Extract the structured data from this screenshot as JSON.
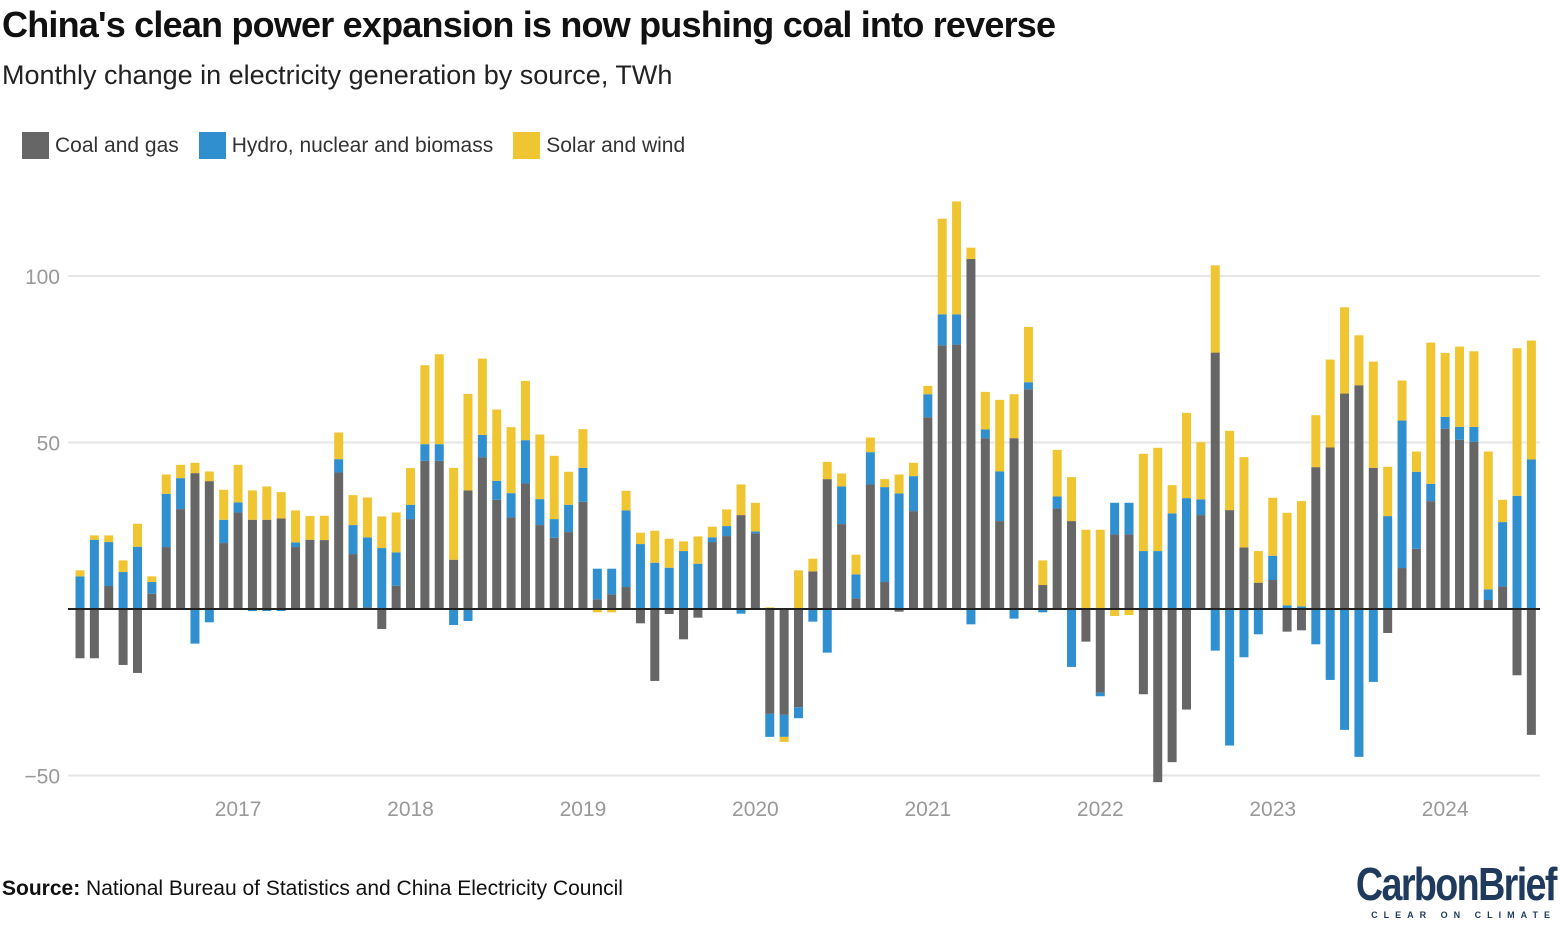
{
  "header": {
    "title": "China's clean power expansion is now pushing coal into reverse",
    "subtitle": "Monthly change in electricity generation by source, TWh"
  },
  "footer": {
    "source_label": "Source:",
    "source_text": "National Bureau of Statistics and China Electricity Council",
    "logo_text": "CarbonBrief",
    "logo_tagline": "CLEAR ON CLIMATE"
  },
  "colors": {
    "coal": "#666666",
    "hydro": "#2f8fcf",
    "solar": "#efc531",
    "grid": "#e6e6e6",
    "zero": "#222222"
  },
  "chart_data": {
    "type": "bar",
    "stacked": true,
    "title": "China's clean power expansion is now pushing coal into reverse",
    "subtitle": "Monthly change in electricity generation by source, TWh",
    "xlabel": "",
    "ylabel": "",
    "ylim": [
      -55,
      125
    ],
    "yticks": [
      100,
      50,
      0,
      -50
    ],
    "ytick_labels": [
      "100",
      "50",
      "",
      "−50"
    ],
    "xtick_labels": [
      "2017",
      "2018",
      "2019",
      "2020",
      "2021",
      "2022",
      "2023",
      "2024"
    ],
    "grid": true,
    "legend_position": "top-left",
    "x_start": "2016-02",
    "x_end": "2024-07",
    "series": [
      {
        "name": "Coal and gas",
        "color": "#666666",
        "values": [
          -14.8,
          -14.8,
          6.9,
          -16.8,
          -19.2,
          4.6,
          18.6,
          30,
          40.8,
          38.4,
          19.8,
          29,
          26.8,
          26.8,
          27.2,
          18.6,
          20.8,
          20.7,
          41,
          16.5,
          0.5,
          -6,
          7,
          27,
          44.5,
          44.5,
          14.8,
          35.6,
          45.6,
          32.8,
          27.5,
          37.7,
          25.2,
          21.4,
          23.1,
          32.2,
          2.9,
          4.4,
          6.6,
          -4.3,
          -21.6,
          -1.5,
          -9.1,
          -2.6,
          20.1,
          21.9,
          28.2,
          22.7,
          -31.5,
          -31.8,
          -29.5,
          11.3,
          39,
          25.5,
          3.2,
          37.4,
          8.1,
          -0.8,
          29.4,
          57.6,
          79.2,
          79.4,
          105.1,
          51.3,
          26.4,
          51.3,
          66,
          7.2,
          30.2,
          26.4,
          -9.8,
          -25.1,
          22.4,
          22.4,
          -25.6,
          -52,
          -46,
          -30.2,
          28.2,
          77,
          29.7,
          18.5,
          7.9,
          8.7,
          -6.8,
          -6.4,
          42.6,
          48.5,
          64.7,
          67.2,
          42.4,
          -7.2,
          12.3,
          18.1,
          32.4,
          54.1,
          50.8,
          50.2,
          2.7,
          6.8,
          -19.9,
          -37.8
        ]
      },
      {
        "name": "Hydro, nuclear and biomass",
        "color": "#2f8fcf",
        "values": [
          9.8,
          20.8,
          13.2,
          11.1,
          18.7,
          3.5,
          16,
          9.3,
          -10.4,
          -4,
          7,
          3,
          -0.6,
          -0.6,
          -0.6,
          1.4,
          0,
          -0.3,
          4,
          8.7,
          21,
          18.3,
          10,
          4.3,
          5,
          5,
          -4.8,
          -3.6,
          6.7,
          5.7,
          7.3,
          13,
          7.8,
          5.6,
          8.2,
          10.2,
          9.2,
          7.7,
          23,
          19.5,
          13.9,
          12.4,
          17.4,
          13.6,
          1.4,
          3,
          -1.4,
          0.6,
          -6.9,
          -6.6,
          -3.3,
          -3.8,
          -13.1,
          11.3,
          7.2,
          9.7,
          28.5,
          34.7,
          10.5,
          6.9,
          9.3,
          9.1,
          -4.6,
          2.6,
          14.9,
          -2.9,
          2.1,
          -1,
          3.6,
          -17.4,
          0,
          -1.1,
          9.5,
          9.5,
          17.4,
          17.4,
          28.7,
          33.3,
          4.7,
          -12.5,
          -41,
          -14.5,
          -7.6,
          7.3,
          1.1,
          0.8,
          -10.6,
          -21.3,
          -36.3,
          -44.4,
          -21.9,
          27.9,
          44.3,
          23.1,
          5.2,
          3.6,
          3.9,
          4.5,
          3.2,
          19.3,
          34,
          44.9
        ]
      },
      {
        "name": "Solar and wind",
        "color": "#efc531",
        "values": [
          1.8,
          1.3,
          2,
          3.5,
          6.9,
          1.7,
          5.8,
          4,
          3.1,
          2.9,
          9,
          11.3,
          8.8,
          10,
          7.9,
          9.6,
          7.1,
          7.3,
          8,
          9,
          12,
          9.5,
          12,
          11,
          23.7,
          27,
          27.6,
          29,
          22.9,
          21.4,
          19.8,
          17.8,
          19.4,
          19,
          9.9,
          11.6,
          -1,
          -1,
          5.9,
          3.4,
          9.6,
          8.7,
          2.9,
          8.2,
          3.2,
          5,
          9.2,
          8.6,
          0.5,
          -1.5,
          11.6,
          3.8,
          5.2,
          3.9,
          5.9,
          4.4,
          2.4,
          5.7,
          4,
          2.5,
          28.7,
          33.9,
          3.4,
          11.3,
          21.5,
          13.2,
          16.6,
          7.4,
          14,
          13.2,
          23.8,
          23.8,
          -2.1,
          -1.8,
          29.2,
          31,
          8.5,
          25.6,
          17.2,
          26.2,
          23.8,
          27.1,
          9.5,
          17.4,
          27.8,
          31.6,
          15.6,
          26.4,
          25.9,
          15,
          31.9,
          14.8,
          12,
          6.1,
          42.4,
          19.2,
          24.1,
          22.7,
          41.4,
          6.7,
          44.3,
          35.7
        ]
      }
    ]
  }
}
